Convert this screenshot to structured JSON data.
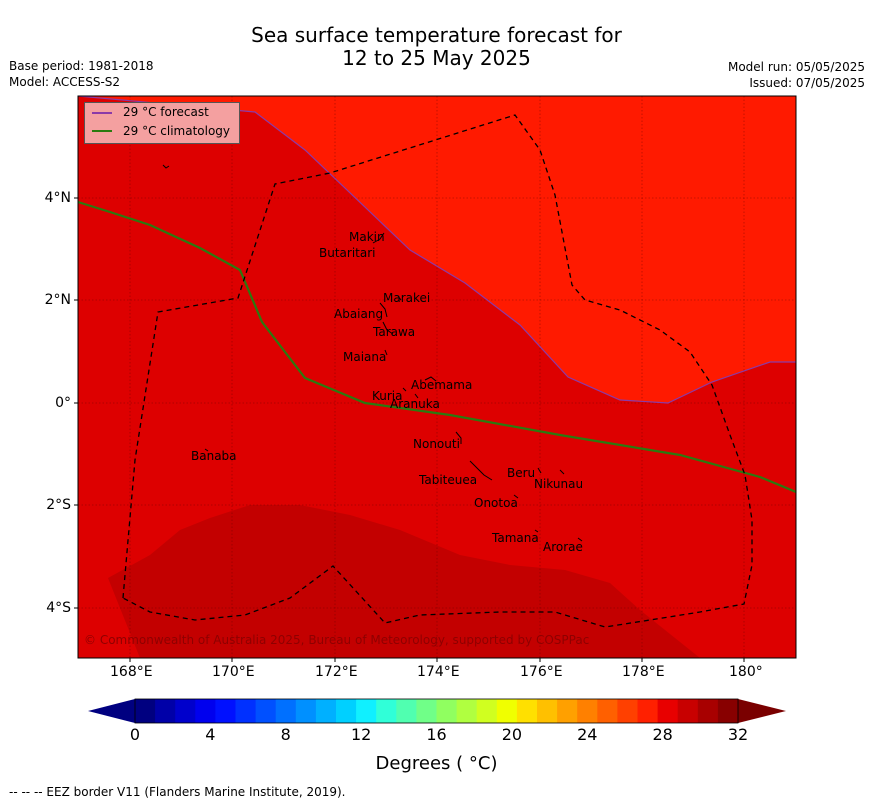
{
  "header": {
    "title_line1": "Sea surface temperature forecast for",
    "title_line2": "12 to 25 May 2025",
    "base_period": "Base period: 1981-2018",
    "model": "Model: ACCESS-S2",
    "model_run": "Model run: 05/05/2025",
    "issued": "Issued: 07/05/2025"
  },
  "legend": {
    "forecast": "29 °C  forecast",
    "climatology": "29 °C  climatology",
    "forecast_color": "#8b3aa8",
    "climatology_color": "#2b7a10"
  },
  "map": {
    "lat_labels": [
      "4°N",
      "2°N",
      "0°",
      "2°S",
      "4°S"
    ],
    "lon_labels": [
      "168°E",
      "170°E",
      "172°E",
      "174°E",
      "176°E",
      "178°E",
      "180°"
    ],
    "islands": {
      "makin": "Makin",
      "butaritari": "Butaritari",
      "marakei": "Marakei",
      "abaiang": "Abaiang",
      "tarawa": "Tarawa",
      "maiana": "Maiana",
      "abemama": "Abemama",
      "kuria": "Kuria",
      "aranuka": "Aranuka",
      "nonouti": "Nonouti",
      "banaba": "Banaba",
      "beru": "Beru",
      "nikunau": "Nikunau",
      "tabiteuea": "Tabiteuea",
      "onotoa": "Onotoa",
      "tamana": "Tamana",
      "arorae": "Arorae"
    },
    "copyright": "© Commonwealth of Australia 2025, Bureau of Meteorology, supported by COSPPac",
    "colors": {
      "bright": "#ff1a00",
      "mid": "#dd0000",
      "dark": "#c30000"
    }
  },
  "colorbar": {
    "ticks": [
      "0",
      "4",
      "8",
      "12",
      "16",
      "20",
      "24",
      "28",
      "32"
    ],
    "label": "Degrees ( °C)",
    "colors": [
      "#000080",
      "#0000a8",
      "#0000cc",
      "#0000ee",
      "#0010ff",
      "#0030ff",
      "#0050ff",
      "#0070ff",
      "#0090ff",
      "#00b0ff",
      "#00d0ff",
      "#10f0ff",
      "#30ffd8",
      "#50ffb0",
      "#70ff88",
      "#90ff60",
      "#b0ff40",
      "#d0ff20",
      "#f0ff00",
      "#ffe000",
      "#ffc000",
      "#ffa000",
      "#ff8000",
      "#ff6000",
      "#ff4000",
      "#ff2000",
      "#e80000",
      "#c80000",
      "#a80000",
      "#880000"
    ],
    "under_color": "#000080",
    "over_color": "#7a0000"
  },
  "footer": {
    "eez_note": "--  --  -- EEZ border V11 (Flanders Marine Institute, 2019)."
  }
}
